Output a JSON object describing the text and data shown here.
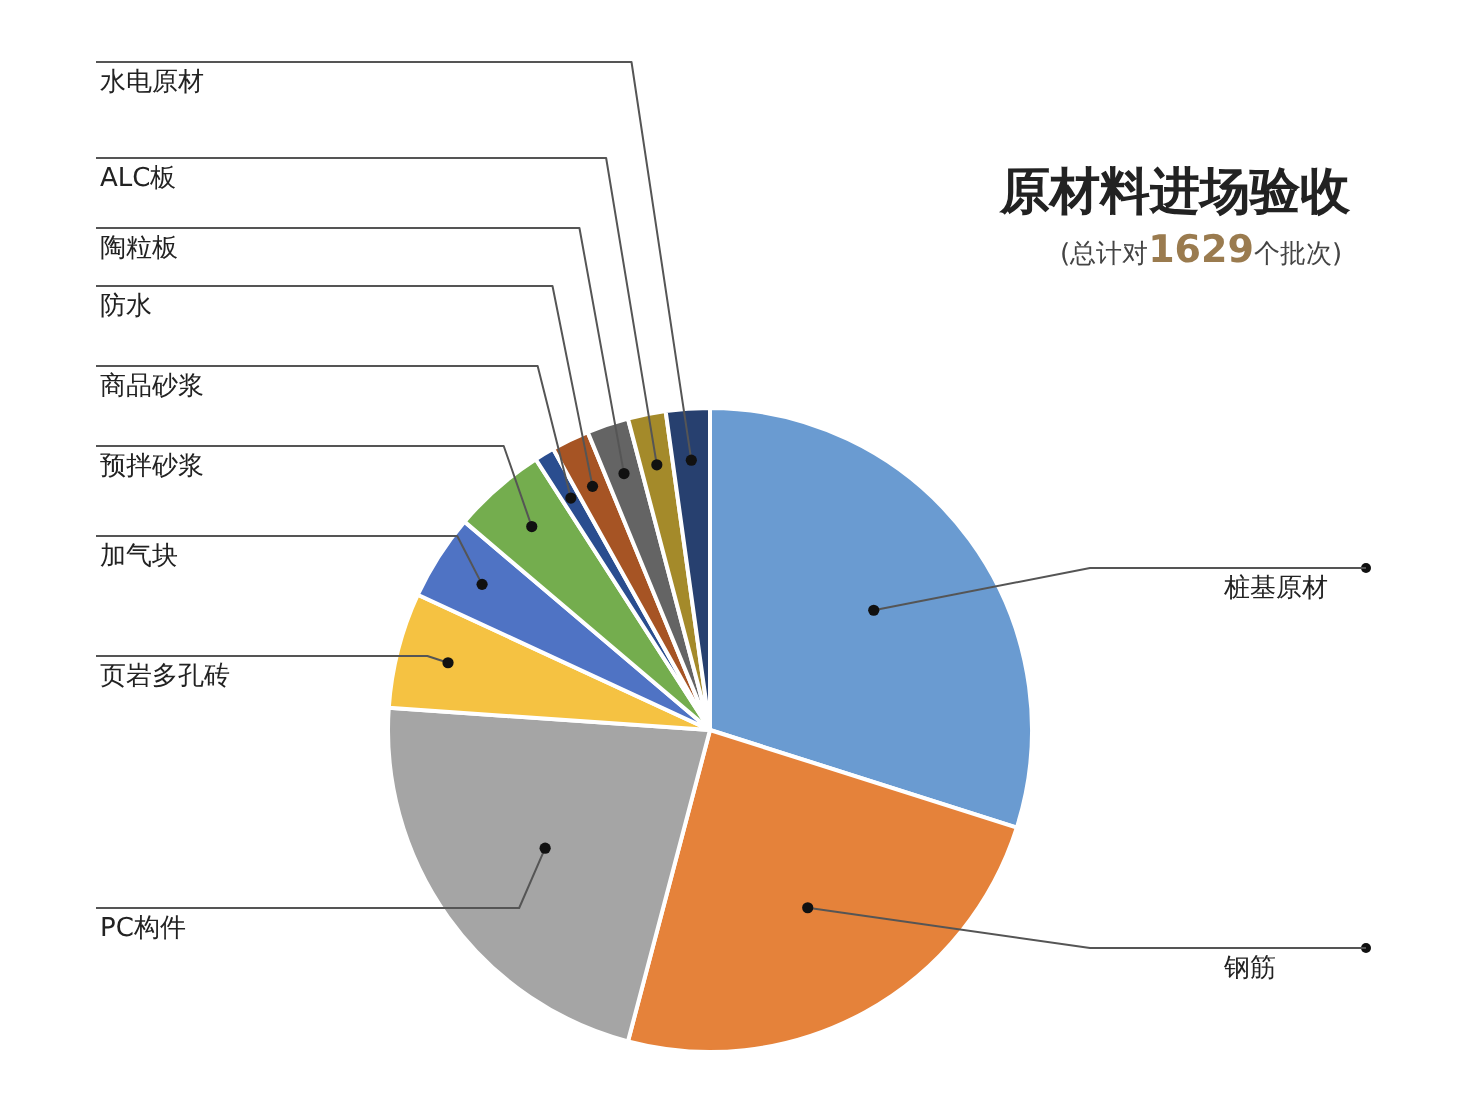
{
  "chart_data": {
    "type": "pie",
    "title": "原材料进场验收",
    "subtitle": "(总计对**1629**个批次)",
    "categories": [
      "桩基原材",
      "钢筋",
      "PC构件",
      "页岩多孔砖",
      "加气块",
      "预拌砂浆",
      "商品砂浆",
      "防水",
      "陶粒板",
      "ALC板",
      "水电原材"
    ],
    "values": [
      29.9,
      24.2,
      22.0,
      5.8,
      4.3,
      4.7,
      1.0,
      1.9,
      2.1,
      1.9,
      2.2
    ],
    "colors": [
      "#6a9bd1",
      "#e5823a",
      "#a5a5a5",
      "#f5c242",
      "#4f73c4",
      "#74ad4e",
      "#2a4d8f",
      "#a65424",
      "#646464",
      "#a48a2a",
      "#27406f"
    ],
    "legend": false
  }
}
